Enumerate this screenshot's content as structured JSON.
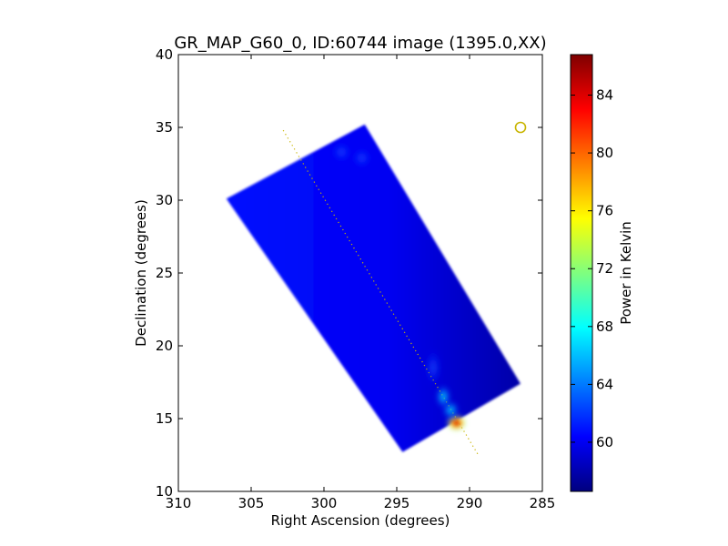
{
  "chart_data": {
    "type": "heatmap",
    "title": "GR_MAP_G60_0, ID:60744 image (1395.0,XX)",
    "xlabel": "Right Ascension (degrees)",
    "ylabel": "Declination (degrees)",
    "xlim": [
      310,
      285
    ],
    "ylim": [
      10,
      40
    ],
    "xticks": [
      310,
      305,
      300,
      295,
      290,
      285
    ],
    "yticks": [
      10,
      15,
      20,
      25,
      30,
      35,
      40
    ],
    "colorbar": {
      "label": "Power in Kelvin",
      "range": [
        56.6,
        86.8
      ],
      "ticks": [
        60,
        64,
        68,
        72,
        76,
        80,
        84
      ],
      "colormap": [
        "#00007f",
        "#0000ff",
        "#007fff",
        "#00ffff",
        "#7fff7f",
        "#ffff00",
        "#ff7f00",
        "#ff0000",
        "#7f0000"
      ]
    },
    "map_region": {
      "corners_ra_dec": [
        [
          306.7,
          30.1
        ],
        [
          297.2,
          35.2
        ],
        [
          286.5,
          17.4
        ],
        [
          294.6,
          12.7
        ]
      ],
      "background_level": 60.0
    },
    "features": [
      {
        "ra": 290.9,
        "dec": 14.7,
        "value": 86.5
      },
      {
        "ra": 291.3,
        "dec": 15.6,
        "value": 74.0
      },
      {
        "ra": 291.8,
        "dec": 16.5,
        "value": 66.0
      },
      {
        "ra": 292.5,
        "dec": 18.5,
        "value": 62.5
      },
      {
        "ra": 298.8,
        "dec": 33.3,
        "value": 62.0
      },
      {
        "ra": 297.4,
        "dec": 32.9,
        "value": 61.5
      }
    ],
    "galactic_plane": [
      [
        302.8,
        34.8
      ],
      [
        289.4,
        12.5
      ]
    ],
    "marker": {
      "ra": 286.5,
      "dec": 35.0,
      "shape": "open circle",
      "color": "#c8b400"
    },
    "grid": false
  }
}
